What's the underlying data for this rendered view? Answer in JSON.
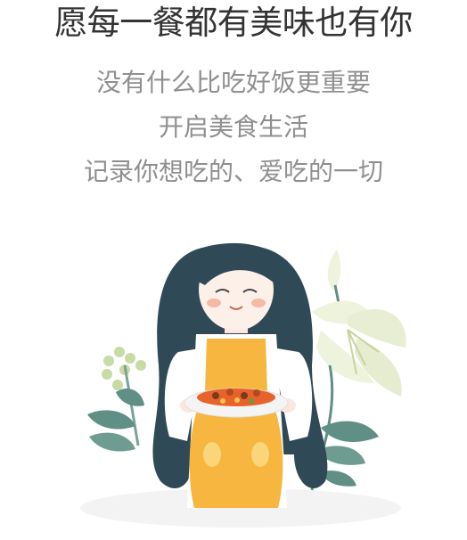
{
  "headline": "愿每一餐都有美味也有你",
  "subtitle_lines": [
    "没有什么比吃好饭更重要",
    "开启美食生活",
    "记录你想吃的、爱吃的一切"
  ],
  "illustration": {
    "subject": "girl-holding-dish-illustration",
    "colors": {
      "hair": "#2f4a56",
      "apron": "#f6b63f",
      "shirt": "#ffffff",
      "plate": "#f4f4f4",
      "food": "#e8622c",
      "leaf": "#5f8f85",
      "lily": "#eef3de"
    }
  }
}
